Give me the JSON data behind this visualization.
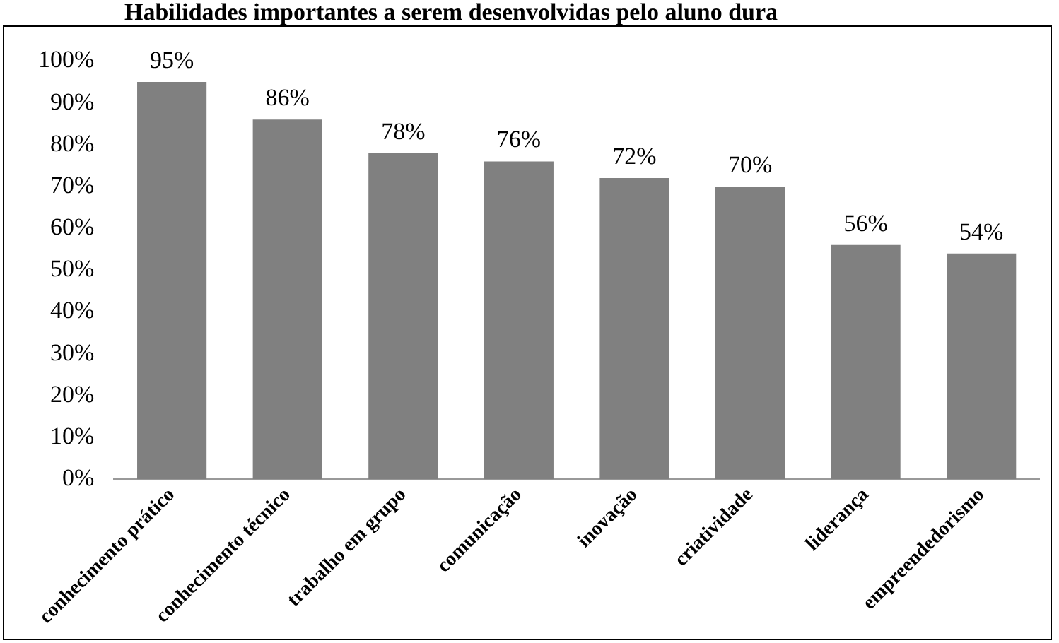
{
  "chart_data": {
    "type": "bar",
    "title": "Habilidades importantes a serem desenvolvidas pelo aluno dura",
    "categories": [
      "conhecimento prático",
      "conhecimento técnico",
      "trabalho em grupo",
      "comunicação",
      "inovação",
      "criatividade",
      "liderança",
      "empreendedorismo"
    ],
    "values": [
      95,
      86,
      78,
      76,
      72,
      70,
      56,
      54
    ],
    "color": "#808080",
    "ylim": [
      0,
      100
    ],
    "yticks": [
      {
        "value": 0,
        "label": "0%"
      },
      {
        "value": 10,
        "label": "10%"
      },
      {
        "value": 20,
        "label": "20%"
      },
      {
        "value": 30,
        "label": "30%"
      },
      {
        "value": 40,
        "label": "40%"
      },
      {
        "value": 50,
        "label": "50%"
      },
      {
        "value": 60,
        "label": "60%"
      },
      {
        "value": 70,
        "label": "70%"
      },
      {
        "value": 80,
        "label": "80%"
      },
      {
        "value": 90,
        "label": "90%"
      },
      {
        "value": 100,
        "label": "100%"
      }
    ],
    "value_labels": [
      "95%",
      "86%",
      "78%",
      "76%",
      "72%",
      "70%",
      "56%",
      "54%"
    ],
    "grid": false,
    "legend": false
  }
}
